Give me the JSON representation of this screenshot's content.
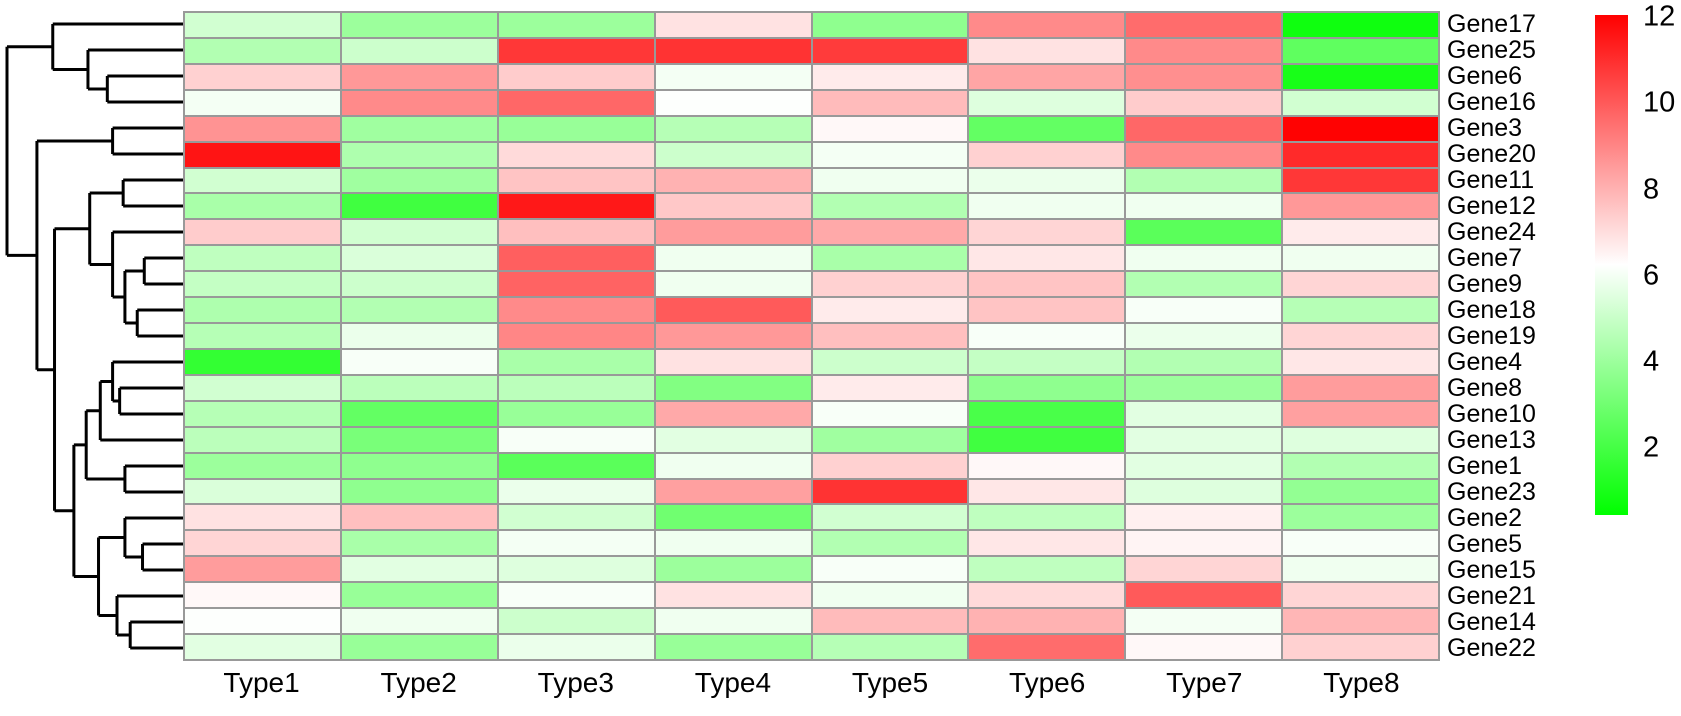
{
  "chart_data": {
    "type": "heatmap",
    "title": "",
    "columns": [
      "Type1",
      "Type2",
      "Type3",
      "Type4",
      "Type5",
      "Type6",
      "Type7",
      "Type8"
    ],
    "rows": [
      "Gene17",
      "Gene25",
      "Gene6",
      "Gene16",
      "Gene3",
      "Gene20",
      "Gene11",
      "Gene12",
      "Gene24",
      "Gene7",
      "Gene9",
      "Gene18",
      "Gene19",
      "Gene4",
      "Gene8",
      "Gene10",
      "Gene13",
      "Gene1",
      "Gene23",
      "Gene2",
      "Gene5",
      "Gene15",
      "Gene21",
      "Gene14",
      "Gene22"
    ],
    "series": [
      {
        "name": "Gene17",
        "values": [
          5.2,
          4.0,
          4.0,
          6.9,
          3.7,
          8.9,
          9.6,
          0.8
        ]
      },
      {
        "name": "Gene25",
        "values": [
          4.5,
          5.1,
          10.8,
          10.9,
          10.7,
          6.9,
          8.9,
          2.6
        ]
      },
      {
        "name": "Gene6",
        "values": [
          7.3,
          8.6,
          7.4,
          6.0,
          6.7,
          8.3,
          8.8,
          1.0
        ]
      },
      {
        "name": "Gene16",
        "values": [
          6.0,
          8.9,
          9.7,
          6.2,
          7.8,
          5.5,
          7.4,
          5.2
        ]
      },
      {
        "name": "Gene3",
        "values": [
          8.7,
          4.1,
          3.9,
          4.6,
          6.4,
          2.7,
          9.7,
          12.0
        ]
      },
      {
        "name": "Gene20",
        "values": [
          11.6,
          4.4,
          7.1,
          5.1,
          6.0,
          7.3,
          8.9,
          11.1
        ]
      },
      {
        "name": "Gene11",
        "values": [
          5.2,
          4.1,
          7.6,
          8.0,
          5.9,
          5.8,
          4.5,
          10.8
        ]
      },
      {
        "name": "Gene12",
        "values": [
          4.3,
          1.9,
          11.5,
          7.5,
          4.5,
          5.9,
          5.9,
          8.6
        ]
      },
      {
        "name": "Gene24",
        "values": [
          7.4,
          5.2,
          7.7,
          8.5,
          8.2,
          7.2,
          2.5,
          6.7
        ]
      },
      {
        "name": "Gene7",
        "values": [
          4.8,
          5.4,
          9.9,
          5.9,
          4.3,
          6.8,
          5.9,
          5.9
        ]
      },
      {
        "name": "Gene9",
        "values": [
          4.9,
          5.1,
          9.8,
          5.9,
          7.3,
          7.6,
          4.5,
          7.2
        ]
      },
      {
        "name": "Gene18",
        "values": [
          4.4,
          4.5,
          8.9,
          10.0,
          6.7,
          7.6,
          6.1,
          4.6
        ]
      },
      {
        "name": "Gene19",
        "values": [
          4.6,
          5.8,
          9.0,
          8.6,
          7.7,
          6.1,
          5.8,
          7.2
        ]
      },
      {
        "name": "Gene4",
        "values": [
          1.6,
          6.1,
          4.3,
          6.9,
          5.1,
          4.9,
          4.5,
          6.8
        ]
      },
      {
        "name": "Gene8",
        "values": [
          5.2,
          4.7,
          4.7,
          3.4,
          6.7,
          3.7,
          4.0,
          8.5
        ]
      },
      {
        "name": "Gene10",
        "values": [
          4.6,
          2.7,
          3.9,
          8.2,
          6.1,
          2.1,
          5.6,
          8.4
        ]
      },
      {
        "name": "Gene13",
        "values": [
          4.7,
          3.2,
          6.1,
          5.6,
          4.1,
          1.9,
          5.6,
          5.5
        ]
      },
      {
        "name": "Gene1",
        "values": [
          4.0,
          3.7,
          2.5,
          5.9,
          7.3,
          6.4,
          5.6,
          4.5
        ]
      },
      {
        "name": "Gene23",
        "values": [
          5.4,
          3.7,
          5.8,
          8.4,
          10.9,
          6.8,
          5.5,
          3.8
        ]
      },
      {
        "name": "Gene2",
        "values": [
          6.9,
          7.7,
          5.2,
          3.0,
          5.2,
          4.8,
          6.6,
          4.0
        ]
      },
      {
        "name": "Gene5",
        "values": [
          7.2,
          4.3,
          6.0,
          5.9,
          4.5,
          6.8,
          6.5,
          6.1
        ]
      },
      {
        "name": "Gene15",
        "values": [
          8.5,
          5.6,
          5.5,
          4.0,
          6.1,
          4.8,
          7.2,
          5.9
        ]
      },
      {
        "name": "Gene21",
        "values": [
          6.4,
          3.9,
          6.1,
          6.9,
          5.9,
          7.1,
          10.0,
          7.2
        ]
      },
      {
        "name": "Gene14",
        "values": [
          6.2,
          5.9,
          5.1,
          5.9,
          7.8,
          8.0,
          6.0,
          7.9
        ]
      },
      {
        "name": "Gene22",
        "values": [
          5.6,
          3.9,
          5.8,
          3.9,
          4.6,
          9.6,
          6.4,
          7.3
        ]
      }
    ],
    "colorscale": {
      "min": 0.45,
      "mid": 6.25,
      "max": 12.05,
      "low_color": "#00ff00",
      "mid_color": "#ffffff",
      "high_color": "#ff0000"
    },
    "legend_ticks": [
      "12",
      "10",
      "8",
      "6",
      "4",
      "2"
    ],
    "legend_tick_values": [
      12,
      10,
      8,
      6,
      4,
      2
    ],
    "grid_color": "#999999",
    "legend_position": "right",
    "row_dendrogram": {
      "h": 1.0,
      "children": [
        {
          "h": 0.74,
          "children": [
            "Gene17",
            {
              "h": 0.54,
              "children": [
                "Gene25",
                {
                  "h": 0.43,
                  "children": [
                    "Gene6",
                    "Gene16"
                  ]
                }
              ]
            }
          ]
        },
        {
          "h": 0.83,
          "children": [
            {
              "h": 0.4,
              "children": [
                "Gene3",
                "Gene20"
              ]
            },
            {
              "h": 0.73,
              "children": [
                {
                  "h": 0.53,
                  "children": [
                    {
                      "h": 0.34,
                      "children": [
                        "Gene11",
                        "Gene12"
                      ]
                    },
                    {
                      "h": 0.4,
                      "children": [
                        "Gene24",
                        {
                          "h": 0.33,
                          "children": [
                            {
                              "h": 0.22,
                              "children": [
                                "Gene7",
                                "Gene9"
                              ]
                            },
                            {
                              "h": 0.26,
                              "children": [
                                "Gene18",
                                "Gene19"
                              ]
                            }
                          ]
                        }
                      ]
                    }
                  ]
                },
                {
                  "h": 0.62,
                  "children": [
                    {
                      "h": 0.55,
                      "children": [
                        {
                          "h": 0.47,
                          "children": [
                            {
                              "h": 0.4,
                              "children": [
                                "Gene4",
                                {
                                  "h": 0.36,
                                  "children": [
                                    "Gene8",
                                    "Gene10"
                                  ]
                                }
                              ]
                            },
                            "Gene13"
                          ]
                        },
                        {
                          "h": 0.33,
                          "children": [
                            "Gene1",
                            "Gene23"
                          ]
                        }
                      ]
                    },
                    {
                      "h": 0.48,
                      "children": [
                        {
                          "h": 0.33,
                          "children": [
                            "Gene2",
                            {
                              "h": 0.23,
                              "children": [
                                "Gene5",
                                "Gene15"
                              ]
                            }
                          ]
                        },
                        {
                          "h": 0.375,
                          "children": [
                            "Gene21",
                            {
                              "h": 0.3,
                              "children": [
                                "Gene14",
                                "Gene22"
                              ]
                            }
                          ]
                        }
                      ]
                    }
                  ]
                }
              ]
            }
          ]
        }
      ]
    }
  }
}
